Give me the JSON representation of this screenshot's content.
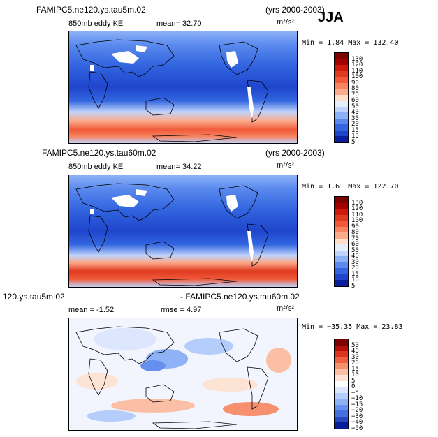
{
  "season": "JJA",
  "panels": [
    {
      "case": "FAMIPC5.ne120.ys.tau5m.02",
      "years": "(yrs 2000-2003)",
      "variable": "850mb eddy KE",
      "stat1": "mean=   32.70",
      "stat2": "",
      "units": "m²/s²",
      "minmax": "Min =   1.84 Max = 132.40",
      "levels": [
        "130",
        "120",
        "110",
        "100",
        "90",
        "80",
        "70",
        "60",
        "50",
        "40",
        "30",
        "20",
        "15",
        "10",
        "5"
      ]
    },
    {
      "case": "FAMIPC5.ne120.ys.tau60m.02",
      "years": "(yrs 2000-2003)",
      "variable": "850mb eddy KE",
      "stat1": "mean=   34.22",
      "stat2": "",
      "units": "m²/s²",
      "minmax": "Min =   1.61 Max = 122.70",
      "levels": [
        "130",
        "120",
        "110",
        "100",
        "90",
        "80",
        "70",
        "60",
        "50",
        "40",
        "30",
        "20",
        "15",
        "10",
        "5"
      ]
    },
    {
      "case": "120.ys.tau5m.02",
      "years": "- FAMIPC5.ne120.ys.tau60m.02",
      "variable": "",
      "stat1": "mean =   -1.52",
      "stat2": "rmse =    4.97",
      "units": "m²/s²",
      "minmax": "Min = −35.35 Max =  23.83",
      "levels": [
        "50",
        "40",
        "30",
        "20",
        "15",
        "10",
        "5",
        "0",
        "−5",
        "−10",
        "−15",
        "−20",
        "−30",
        "−40",
        "−50"
      ]
    }
  ],
  "colors": {
    "abs_scale": [
      "#7f0000",
      "#a30000",
      "#cc1a0d",
      "#e03a1f",
      "#f05a3a",
      "#f7835f",
      "#fbab8b",
      "#fde0cc",
      "#e6eefc",
      "#bfd3fb",
      "#8cb1f6",
      "#5a8aee",
      "#3366e0",
      "#1f45cc",
      "#0a1e99"
    ],
    "diff_scale": [
      "#7f0000",
      "#b3100a",
      "#d93520",
      "#ef6040",
      "#f6906e",
      "#fabfa4",
      "#fde3d4",
      "#ffffff",
      "#dce7fd",
      "#b5cdfb",
      "#8fb1f6",
      "#6690ee",
      "#4470e0",
      "#2848c4",
      "#0a1e99"
    ]
  }
}
